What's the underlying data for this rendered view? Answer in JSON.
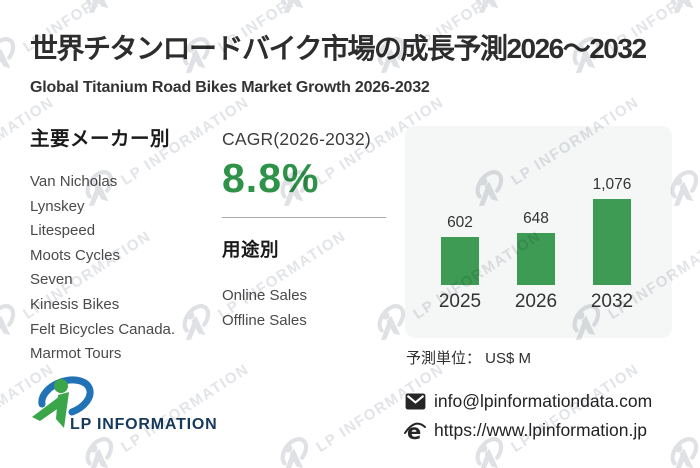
{
  "header": {
    "title": "世界チタンロードバイク市場の成長予測2026～2032",
    "subtitle": "Global Titanium Road Bikes Market Growth 2026-2032"
  },
  "manufacturers": {
    "heading": "主要メーカー別",
    "items": [
      "Van Nicholas",
      "Lynskey",
      "Litespeed",
      "Moots Cycles",
      "Seven",
      "Kinesis Bikes",
      "Felt Bicycles Canada.",
      "Marmot Tours"
    ]
  },
  "cagr": {
    "label": "CAGR(2026-2032)",
    "value": "8.8%",
    "color": "#2e9348"
  },
  "applications": {
    "heading": "用途別",
    "items": [
      "Online Sales",
      "Offline Sales"
    ]
  },
  "chart_data": {
    "type": "bar",
    "categories": [
      "2025",
      "2026",
      "2032"
    ],
    "values": [
      602,
      648,
      1076
    ],
    "value_labels": [
      "602",
      "648",
      "1,076"
    ],
    "title": "",
    "xlabel": "",
    "ylabel": "",
    "ylim": [
      0,
      1100
    ],
    "grid": false,
    "legend": false,
    "bar_color": "#3d9b54",
    "card_background": "#f5f6f6",
    "unit_note": "予測単位： US$ M"
  },
  "footer": {
    "logo_text": "LP INFORMATION",
    "email": "info@lpinformationdata.com",
    "website": "https://www.lpinformation.jp",
    "icons": {
      "email": "envelope-icon",
      "website": "browser-icon"
    }
  },
  "watermark": {
    "text": "LP INFORMATION"
  }
}
